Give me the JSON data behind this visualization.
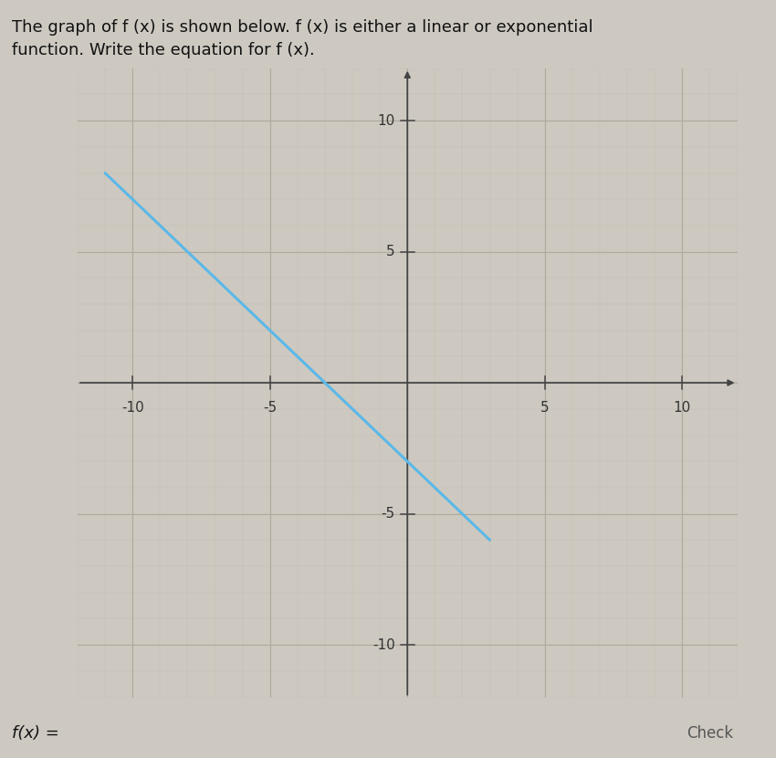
{
  "title_line1": "The graph of ​f​ (​x​) is shown below. ​f​ (​x​) is either a linear or exponential",
  "title_line2": "function. Write the equation for ​f​ (​x​).",
  "bottom_label": "f(x) =",
  "check_label": "Check",
  "bg_color": "#cdc9c1",
  "plot_bg_color": "#e6e2d8",
  "grid_minor_color": "#c2bdb4",
  "grid_major_color": "#b0aa9e",
  "axis_color": "#444444",
  "line_color": "#5bb8e8",
  "line_x_start": -11,
  "line_x_end": 3,
  "slope": -1,
  "intercept": -3,
  "xlim": [
    -12,
    12
  ],
  "ylim": [
    -12,
    12
  ],
  "xticks": [
    -10,
    -5,
    5,
    10
  ],
  "yticks": [
    -10,
    -5,
    5,
    10
  ],
  "xtick_labels": [
    "-10",
    "-5",
    "5",
    "10"
  ],
  "ytick_labels": [
    "-10",
    "-5",
    "5",
    "10"
  ],
  "figsize": [
    8.5,
    8.3
  ],
  "dpi": 100
}
